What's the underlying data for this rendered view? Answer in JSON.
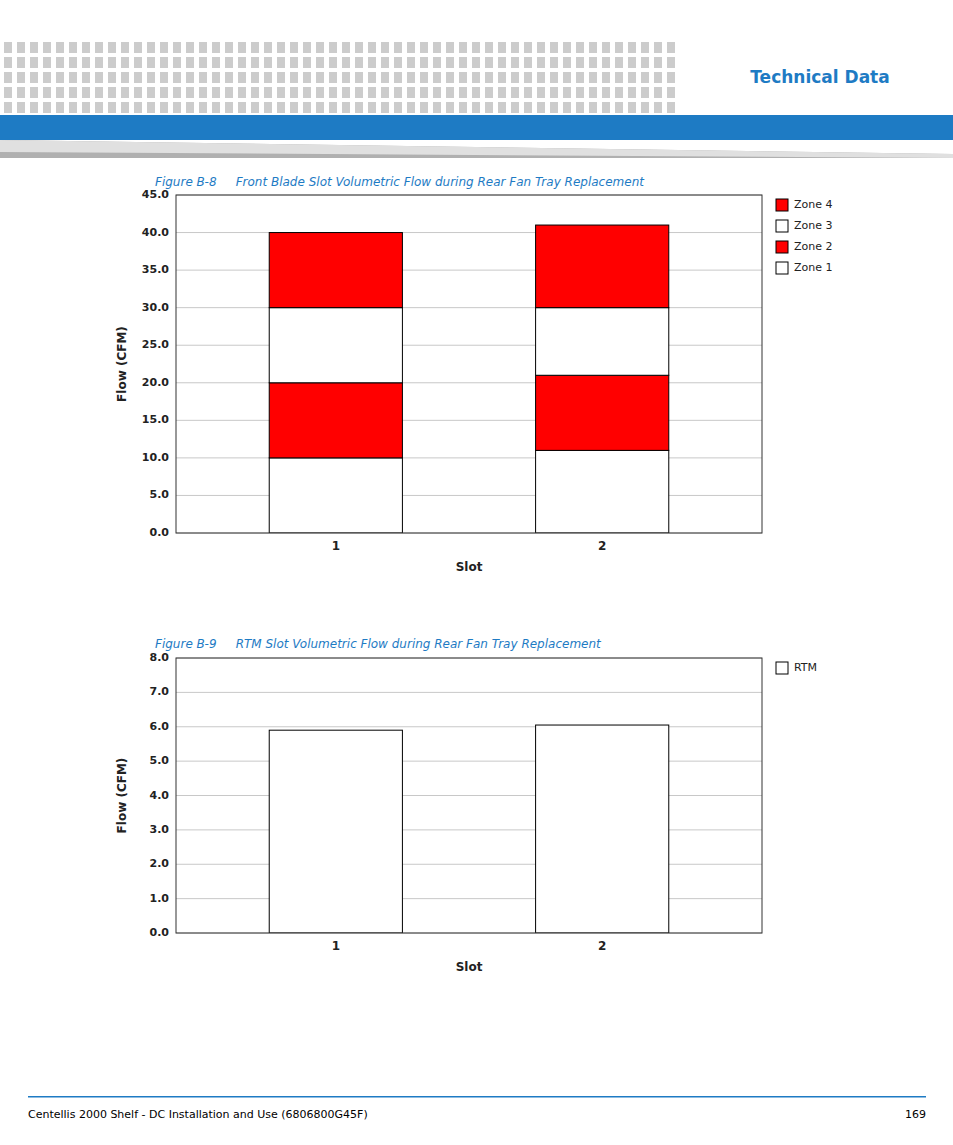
{
  "chart_data": [
    {
      "type": "bar",
      "title": "Figure B-8     Front Blade Slot Volumetric Flow during Rear Fan Tray Replacement",
      "xlabel": "Slot",
      "ylabel": "Flow (CFM)",
      "categories": [
        "1",
        "2"
      ],
      "series": [
        {
          "name": "Zone 1",
          "color": "#FFFFFF",
          "values": [
            10.0,
            11.0
          ]
        },
        {
          "name": "Zone 2",
          "color": "#FF0000",
          "values": [
            10.0,
            10.0
          ]
        },
        {
          "name": "Zone 3",
          "color": "#FFFFFF",
          "values": [
            10.0,
            9.0
          ]
        },
        {
          "name": "Zone 4",
          "color": "#FF0000",
          "values": [
            10.0,
            11.0
          ]
        }
      ],
      "stacked": true,
      "ylim": [
        0,
        45
      ],
      "yticks": [
        {
          "value": 0.0,
          "label": "0.0"
        },
        {
          "value": 5.0,
          "label": "5.0"
        },
        {
          "value": 10.0,
          "label": "10.0"
        },
        {
          "value": 15.0,
          "label": "15.0"
        },
        {
          "value": 20.0,
          "label": "20.0"
        },
        {
          "value": 25.0,
          "label": "25.0"
        },
        {
          "value": 30.0,
          "label": "30.0"
        },
        {
          "value": 35.0,
          "label": "35.0"
        },
        {
          "value": 40.0,
          "label": "40.0"
        },
        {
          "value": 45.0,
          "label": "45.0"
        }
      ],
      "grid": true,
      "legend": "right"
    },
    {
      "type": "bar",
      "title": "Figure B-9     RTM Slot Volumetric Flow during Rear Fan Tray Replacement",
      "xlabel": "Slot",
      "ylabel": "Flow (CFM)",
      "categories": [
        "1",
        "2"
      ],
      "series": [
        {
          "name": "RTM",
          "color": "#FFFFFF",
          "values": [
            5.9,
            6.05
          ]
        }
      ],
      "ylim": [
        0,
        8
      ],
      "yticks": [
        {
          "value": 0.0,
          "label": "0.0"
        },
        {
          "value": 1.0,
          "label": "1.0"
        },
        {
          "value": 2.0,
          "label": "2.0"
        },
        {
          "value": 3.0,
          "label": "3.0"
        },
        {
          "value": 4.0,
          "label": "4.0"
        },
        {
          "value": 5.0,
          "label": "5.0"
        },
        {
          "value": 6.0,
          "label": "6.0"
        },
        {
          "value": 7.0,
          "label": "7.0"
        },
        {
          "value": 8.0,
          "label": "8.0"
        }
      ],
      "grid": true,
      "legend": "right"
    }
  ],
  "annotations": [
    "Technical Data",
    "Centellis 2000 Shelf - DC Installation and Use (6806800G45F)",
    "169"
  ]
}
